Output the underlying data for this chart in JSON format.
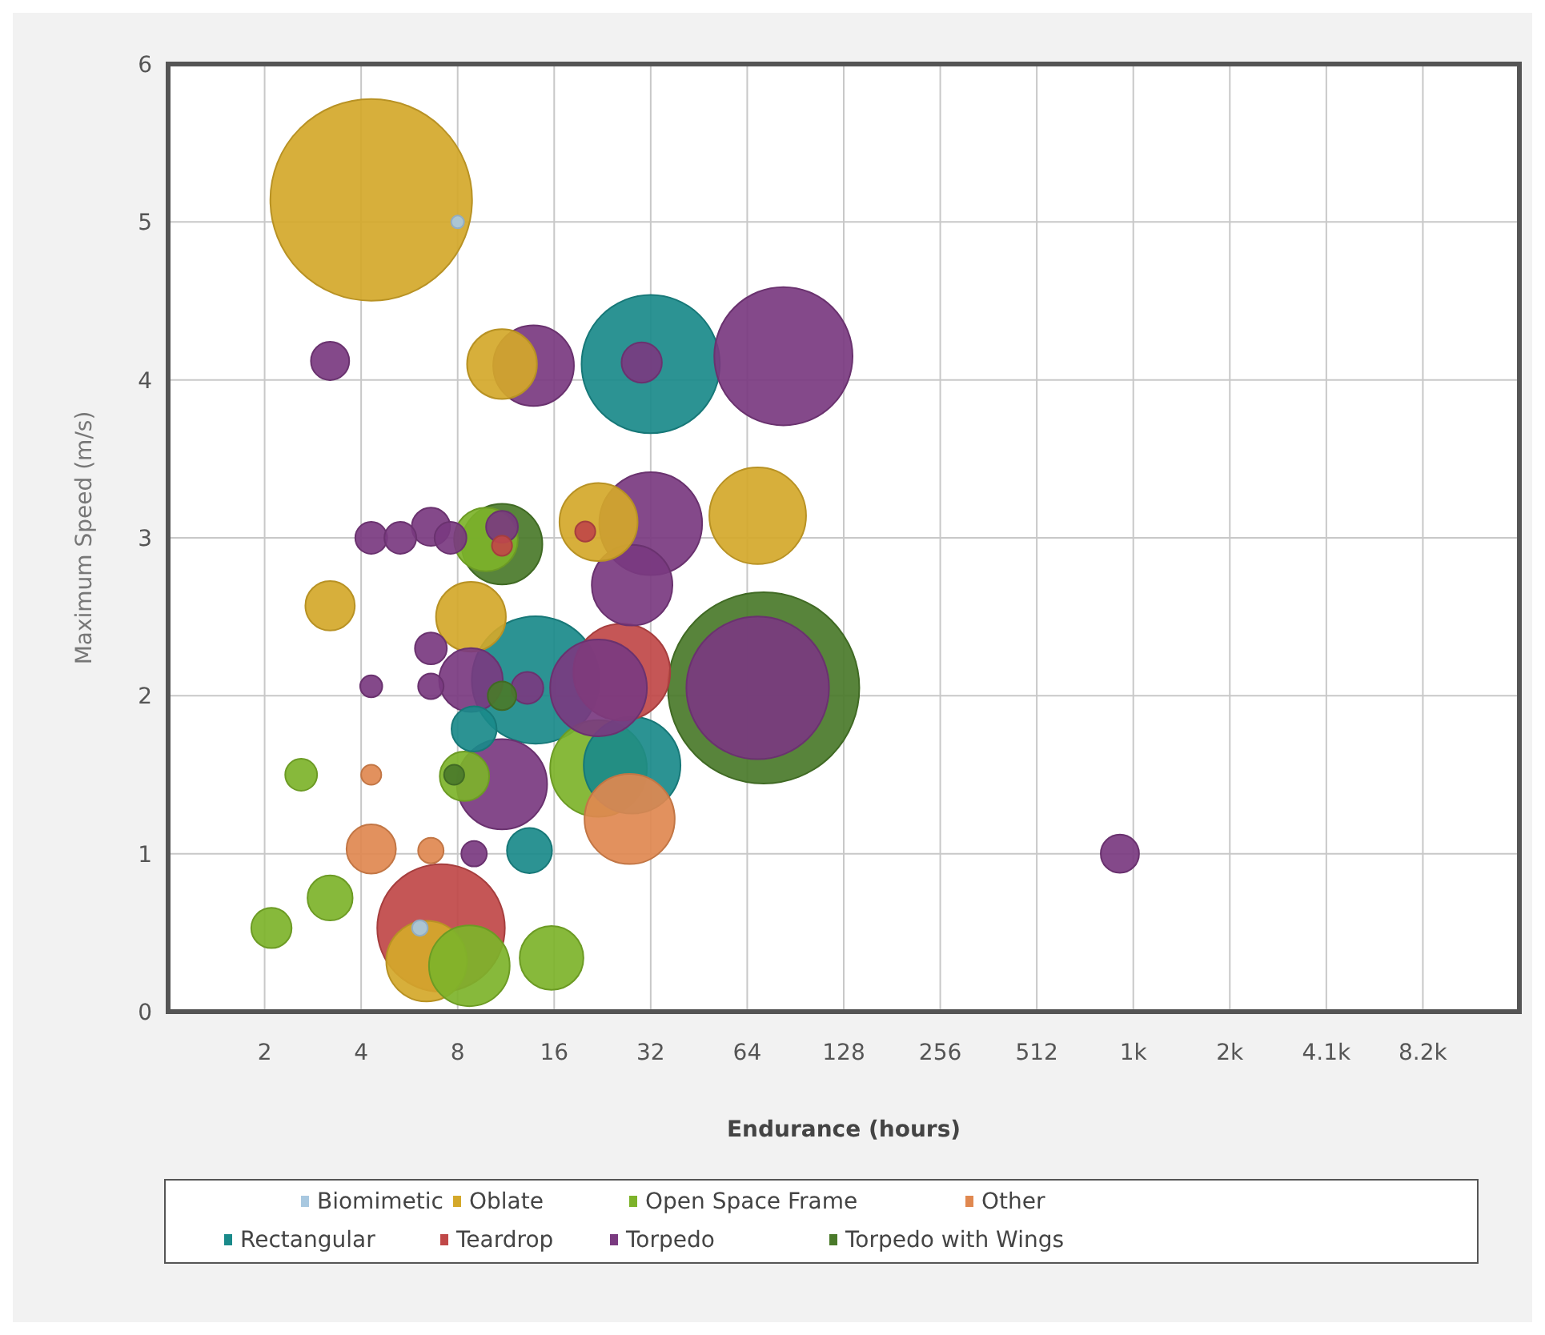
{
  "chart_data": {
    "type": "bubble",
    "xlabel": "Endurance (hours)",
    "ylabel": "Maximum Speed (m/s)",
    "log": "x",
    "grid": true,
    "legend": "bottom",
    "xlim": [
      1,
      16384
    ],
    "xticks": [
      2,
      4,
      8,
      16,
      32,
      64,
      128,
      256,
      512,
      {
        "value": 1024,
        "label": "1k"
      },
      {
        "value": 2048,
        "label": "2k"
      },
      {
        "value": 4096,
        "label": "4.1k"
      },
      {
        "value": 8192,
        "label": "8.2k"
      }
    ],
    "ylim": [
      0,
      6
    ],
    "yticks": [
      0,
      1,
      2,
      3,
      4,
      5,
      6
    ],
    "series": [
      {
        "name": "Biomimetic",
        "color": "#a8c8e0",
        "x": [
          8,
          6.1
        ],
        "values": [
          5.0,
          0.53
        ],
        "sizes": [
          0.004,
          0.006
        ]
      },
      {
        "name": "Oblate",
        "color": "#d4a82a",
        "x": [
          4.3,
          11,
          3.2,
          8.8,
          22,
          69,
          6.4
        ],
        "values": [
          5.14,
          4.1,
          2.57,
          2.5,
          3.1,
          3.14,
          0.32
        ],
        "sizes": [
          1,
          0.12,
          0.06,
          0.12,
          0.15,
          0.23,
          0.16
        ]
      },
      {
        "name": "Open Space Frame",
        "color": "#7db32a",
        "x": [
          2.1,
          3.2,
          2.6,
          15.7,
          8.7,
          8.4,
          22,
          9.8
        ],
        "values": [
          0.53,
          0.72,
          1.5,
          0.34,
          0.29,
          1.49,
          1.54,
          2.99
        ],
        "sizes": [
          0.04,
          0.05,
          0.025,
          0.1,
          0.16,
          0.06,
          0.23,
          0.1
        ]
      },
      {
        "name": "Other",
        "color": "#e08850",
        "x": [
          4.3,
          4.3,
          6.6,
          27.5
        ],
        "values": [
          1.5,
          1.03,
          1.02,
          1.22
        ],
        "sizes": [
          0.01,
          0.06,
          0.016,
          0.2
        ]
      },
      {
        "name": "Rectangular",
        "color": "#1a8a8a",
        "x": [
          32,
          14,
          28,
          9,
          13.4
        ],
        "values": [
          4.1,
          2.1,
          1.56,
          1.79,
          1.02
        ],
        "sizes": [
          0.47,
          0.4,
          0.23,
          0.05,
          0.05
        ]
      },
      {
        "name": "Teardrop",
        "color": "#c04848",
        "x": [
          7.1,
          26,
          20,
          11
        ],
        "values": [
          0.53,
          2.15,
          3.04,
          2.95
        ],
        "sizes": [
          0.4,
          0.23,
          0.01,
          0.01
        ]
      },
      {
        "name": "Torpedo",
        "color": "#7a3a80",
        "x": [
          83,
          69,
          3.2,
          13.8,
          30,
          32,
          4.3,
          5.3,
          6.6,
          7.6,
          11,
          6.6,
          4.3,
          6.6,
          8.8,
          13.2,
          11,
          9,
          930,
          22,
          28
        ],
        "values": [
          4.15,
          2.05,
          4.12,
          4.09,
          4.11,
          3.09,
          3.0,
          3.0,
          3.07,
          3.0,
          3.07,
          2.3,
          2.06,
          2.06,
          2.1,
          2.05,
          1.44,
          1.0,
          1.0,
          2.05,
          2.7
        ],
        "sizes": [
          0.47,
          0.5,
          0.036,
          0.16,
          0.04,
          0.26,
          0.025,
          0.025,
          0.036,
          0.025,
          0.025,
          0.025,
          0.012,
          0.016,
          0.1,
          0.025,
          0.2,
          0.016,
          0.036,
          0.23,
          0.16
        ]
      },
      {
        "name": "Torpedo with Wings",
        "color": "#4a7a2a",
        "x": [
          72,
          11,
          11,
          7.8
        ],
        "values": [
          2.05,
          2.96,
          2.0,
          1.5
        ],
        "sizes": [
          0.9,
          0.16,
          0.02,
          0.01
        ]
      }
    ]
  }
}
